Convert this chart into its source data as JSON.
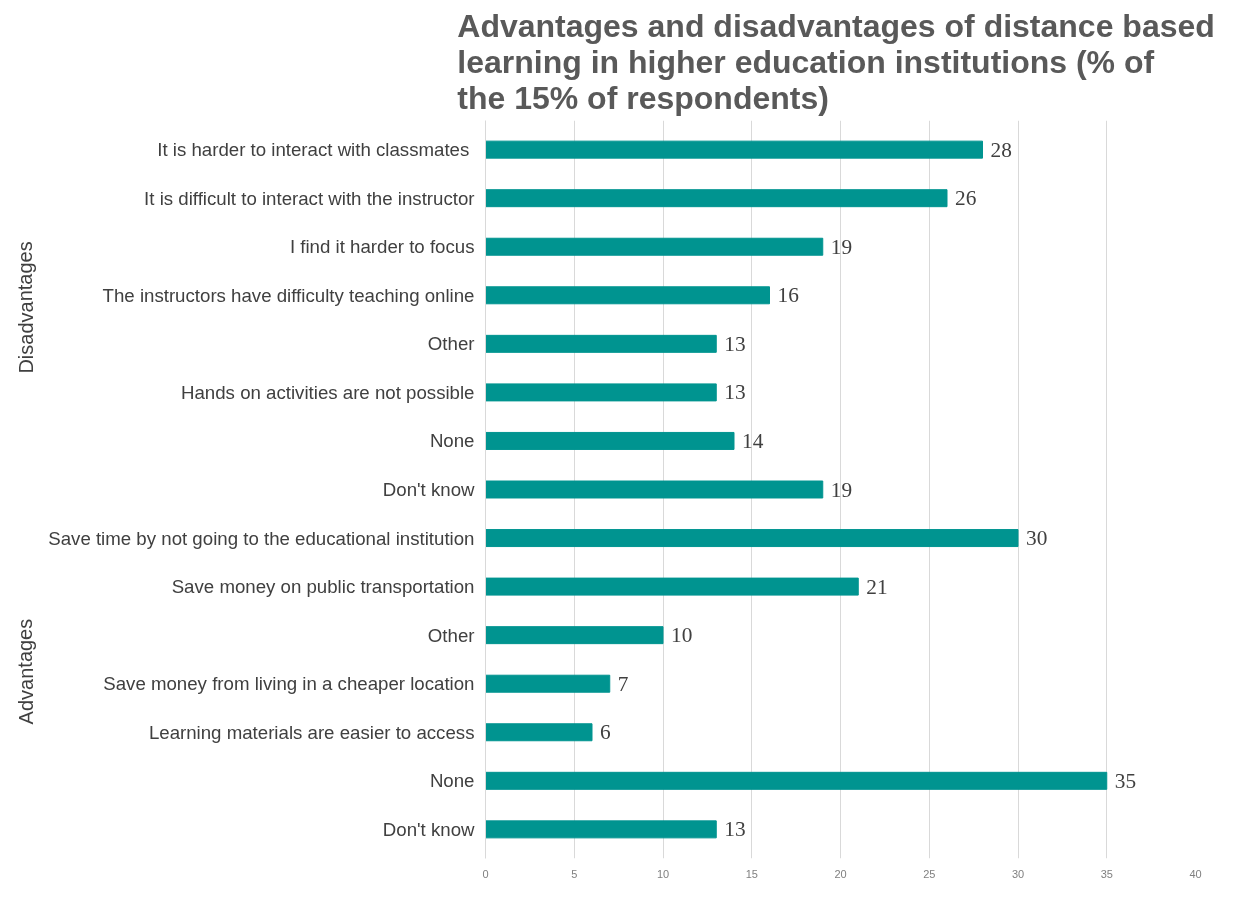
{
  "chart_data": {
    "type": "bar",
    "orientation": "horizontal",
    "title": "Advantages and disadvantages of distance based learning in higher education institutions (% of the 15% of  respondents)",
    "categories": [
      "It is harder to interact with classmates ",
      "It is difficult to interact with the instructor",
      "I find it harder to focus",
      "The instructors have difficulty teaching online",
      "Other",
      "Hands on activities are not possible",
      "None",
      "Don't know",
      "Save time by not going to the educational institution",
      "Save money on public transportation",
      "Other",
      "Save money from living in a cheaper location",
      "Learning materials are easier to access",
      "None",
      "Don't know"
    ],
    "values": [
      28,
      26,
      19,
      16,
      13,
      13,
      14,
      19,
      30,
      21,
      10,
      7,
      6,
      35,
      13
    ],
    "color": "#009490",
    "xlim": [
      0,
      40
    ],
    "xticks": [
      0,
      5,
      10,
      15,
      20,
      25,
      30,
      35,
      40
    ],
    "grid": "x",
    "data_labels": true,
    "annotations": [
      "Disadvantages",
      "Advantages"
    ]
  }
}
